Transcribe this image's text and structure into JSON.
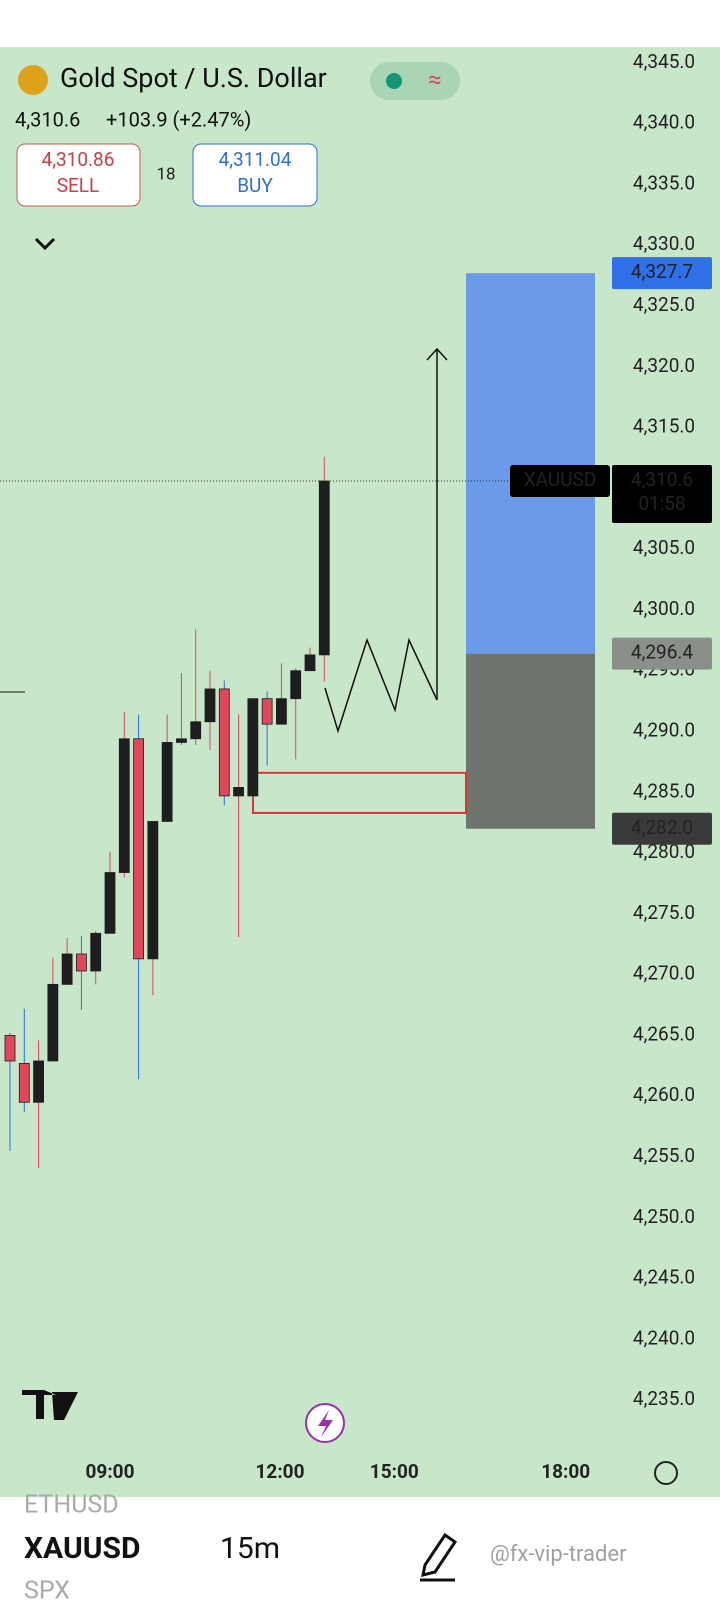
{
  "header": {
    "symbol_title": "Gold Spot / U.S. Dollar",
    "last_price": "4,310.6",
    "change": "+103.9 (+2.47%)",
    "sell_price": "4,310.86",
    "sell_label": "SELL",
    "spread": "18",
    "buy_price": "4,311.04",
    "buy_label": "BUY"
  },
  "chart_data": {
    "type": "candlestick",
    "x": [
      0,
      1,
      2,
      3,
      4,
      5,
      6,
      7,
      8,
      9,
      10,
      11,
      12,
      13,
      14,
      15,
      16,
      17,
      18,
      19,
      20,
      21,
      22
    ],
    "open": [
      4265.0,
      4262.7,
      4259.5,
      4262.9,
      4269.2,
      4271.7,
      4270.3,
      4273.4,
      4278.4,
      4289.4,
      4271.3,
      4282.6,
      4289.1,
      4289.4,
      4290.8,
      4293.5,
      4284.7,
      4284.7,
      4292.7,
      4290.6,
      4292.7,
      4295.0,
      4296.3
    ],
    "high": [
      4265.2,
      4267.2,
      4264.6,
      4271.4,
      4273.0,
      4273.2,
      4273.6,
      4280.1,
      4291.6,
      4291.4,
      4282.6,
      4291.4,
      4294.8,
      4298.4,
      4295.0,
      4294.2,
      4291.4,
      4292.7,
      4293.3,
      4295.6,
      4295.2,
      4296.9,
      4312.6
    ],
    "low": [
      4255.5,
      4258.7,
      4254.1,
      4262.9,
      4269.2,
      4267.1,
      4269.2,
      4273.4,
      4278.0,
      4261.4,
      4268.3,
      4282.6,
      4288.9,
      4288.9,
      4288.5,
      4283.9,
      4273.1,
      4284.3,
      4287.2,
      4290.6,
      4287.7,
      4295.0,
      4294.1
    ],
    "close": [
      4262.9,
      4259.5,
      4262.9,
      4269.2,
      4271.7,
      4270.3,
      4273.4,
      4278.4,
      4289.4,
      4271.3,
      4282.6,
      4289.1,
      4289.4,
      4290.8,
      4293.5,
      4284.7,
      4285.4,
      4292.7,
      4290.6,
      4292.7,
      4295.0,
      4296.3,
      4310.6
    ],
    "up_color": "#1e1e1e",
    "down_color": "#e0475a",
    "xlim": [
      -0.7,
      42
    ],
    "xticks": [
      {
        "value": 7,
        "label": "09:00"
      },
      {
        "value": 18.9,
        "label": "12:00"
      },
      {
        "value": 26.9,
        "label": "15:00"
      },
      {
        "value": 38.9,
        "label": "18:00"
      }
    ],
    "ylim": [
      4227.2,
      4346.3
    ],
    "yticks": [
      {
        "value": 4235,
        "label": "4,235.0"
      },
      {
        "value": 4240,
        "label": "4,240.0"
      },
      {
        "value": 4245,
        "label": "4,245.0"
      },
      {
        "value": 4250,
        "label": "4,250.0"
      },
      {
        "value": 4255,
        "label": "4,255.0"
      },
      {
        "value": 4260,
        "label": "4,260.0"
      },
      {
        "value": 4265,
        "label": "4,265.0"
      },
      {
        "value": 4270,
        "label": "4,270.0"
      },
      {
        "value": 4275,
        "label": "4,275.0"
      },
      {
        "value": 4280,
        "label": "4,280.0"
      },
      {
        "value": 4285,
        "label": "4,285.0"
      },
      {
        "value": 4290,
        "label": "4,290.0"
      },
      {
        "value": 4295,
        "label": "4,295.0"
      },
      {
        "value": 4300,
        "label": "4,300.0"
      },
      {
        "value": 4305,
        "label": "4,305.0"
      },
      {
        "value": 4310,
        "label": "4,310.0"
      },
      {
        "value": 4315,
        "label": "4,315.0"
      },
      {
        "value": 4320,
        "label": "4,320.0"
      },
      {
        "value": 4325,
        "label": "4,325.0"
      },
      {
        "value": 4330,
        "label": "4,330.0"
      },
      {
        "value": 4335,
        "label": "4,335.0"
      },
      {
        "value": 4340,
        "label": "4,340.0"
      },
      {
        "value": 4345,
        "label": "4,345.0"
      }
    ],
    "current_price": {
      "value": 4310.6,
      "label": "4,310.6",
      "symbol": "XAUUSD",
      "countdown": "01:58"
    },
    "position": {
      "target": {
        "value": 4327.7,
        "label": "4,327.7"
      },
      "entry": {
        "value": 4296.4,
        "label": "4,296.4"
      },
      "stop": {
        "value": 4282.0,
        "label": "4,282.0"
      },
      "profit_color": "#6b9be8",
      "loss_color": "#6e756e"
    },
    "zone": {
      "top": 4286.6,
      "bottom": 4283.3
    }
  },
  "footer": {
    "prev_symbol": "ETHUSD",
    "symbol": "XAUUSD",
    "interval": "15m",
    "next_symbol": "SPX",
    "watermark": "@fx-vip-trader"
  }
}
